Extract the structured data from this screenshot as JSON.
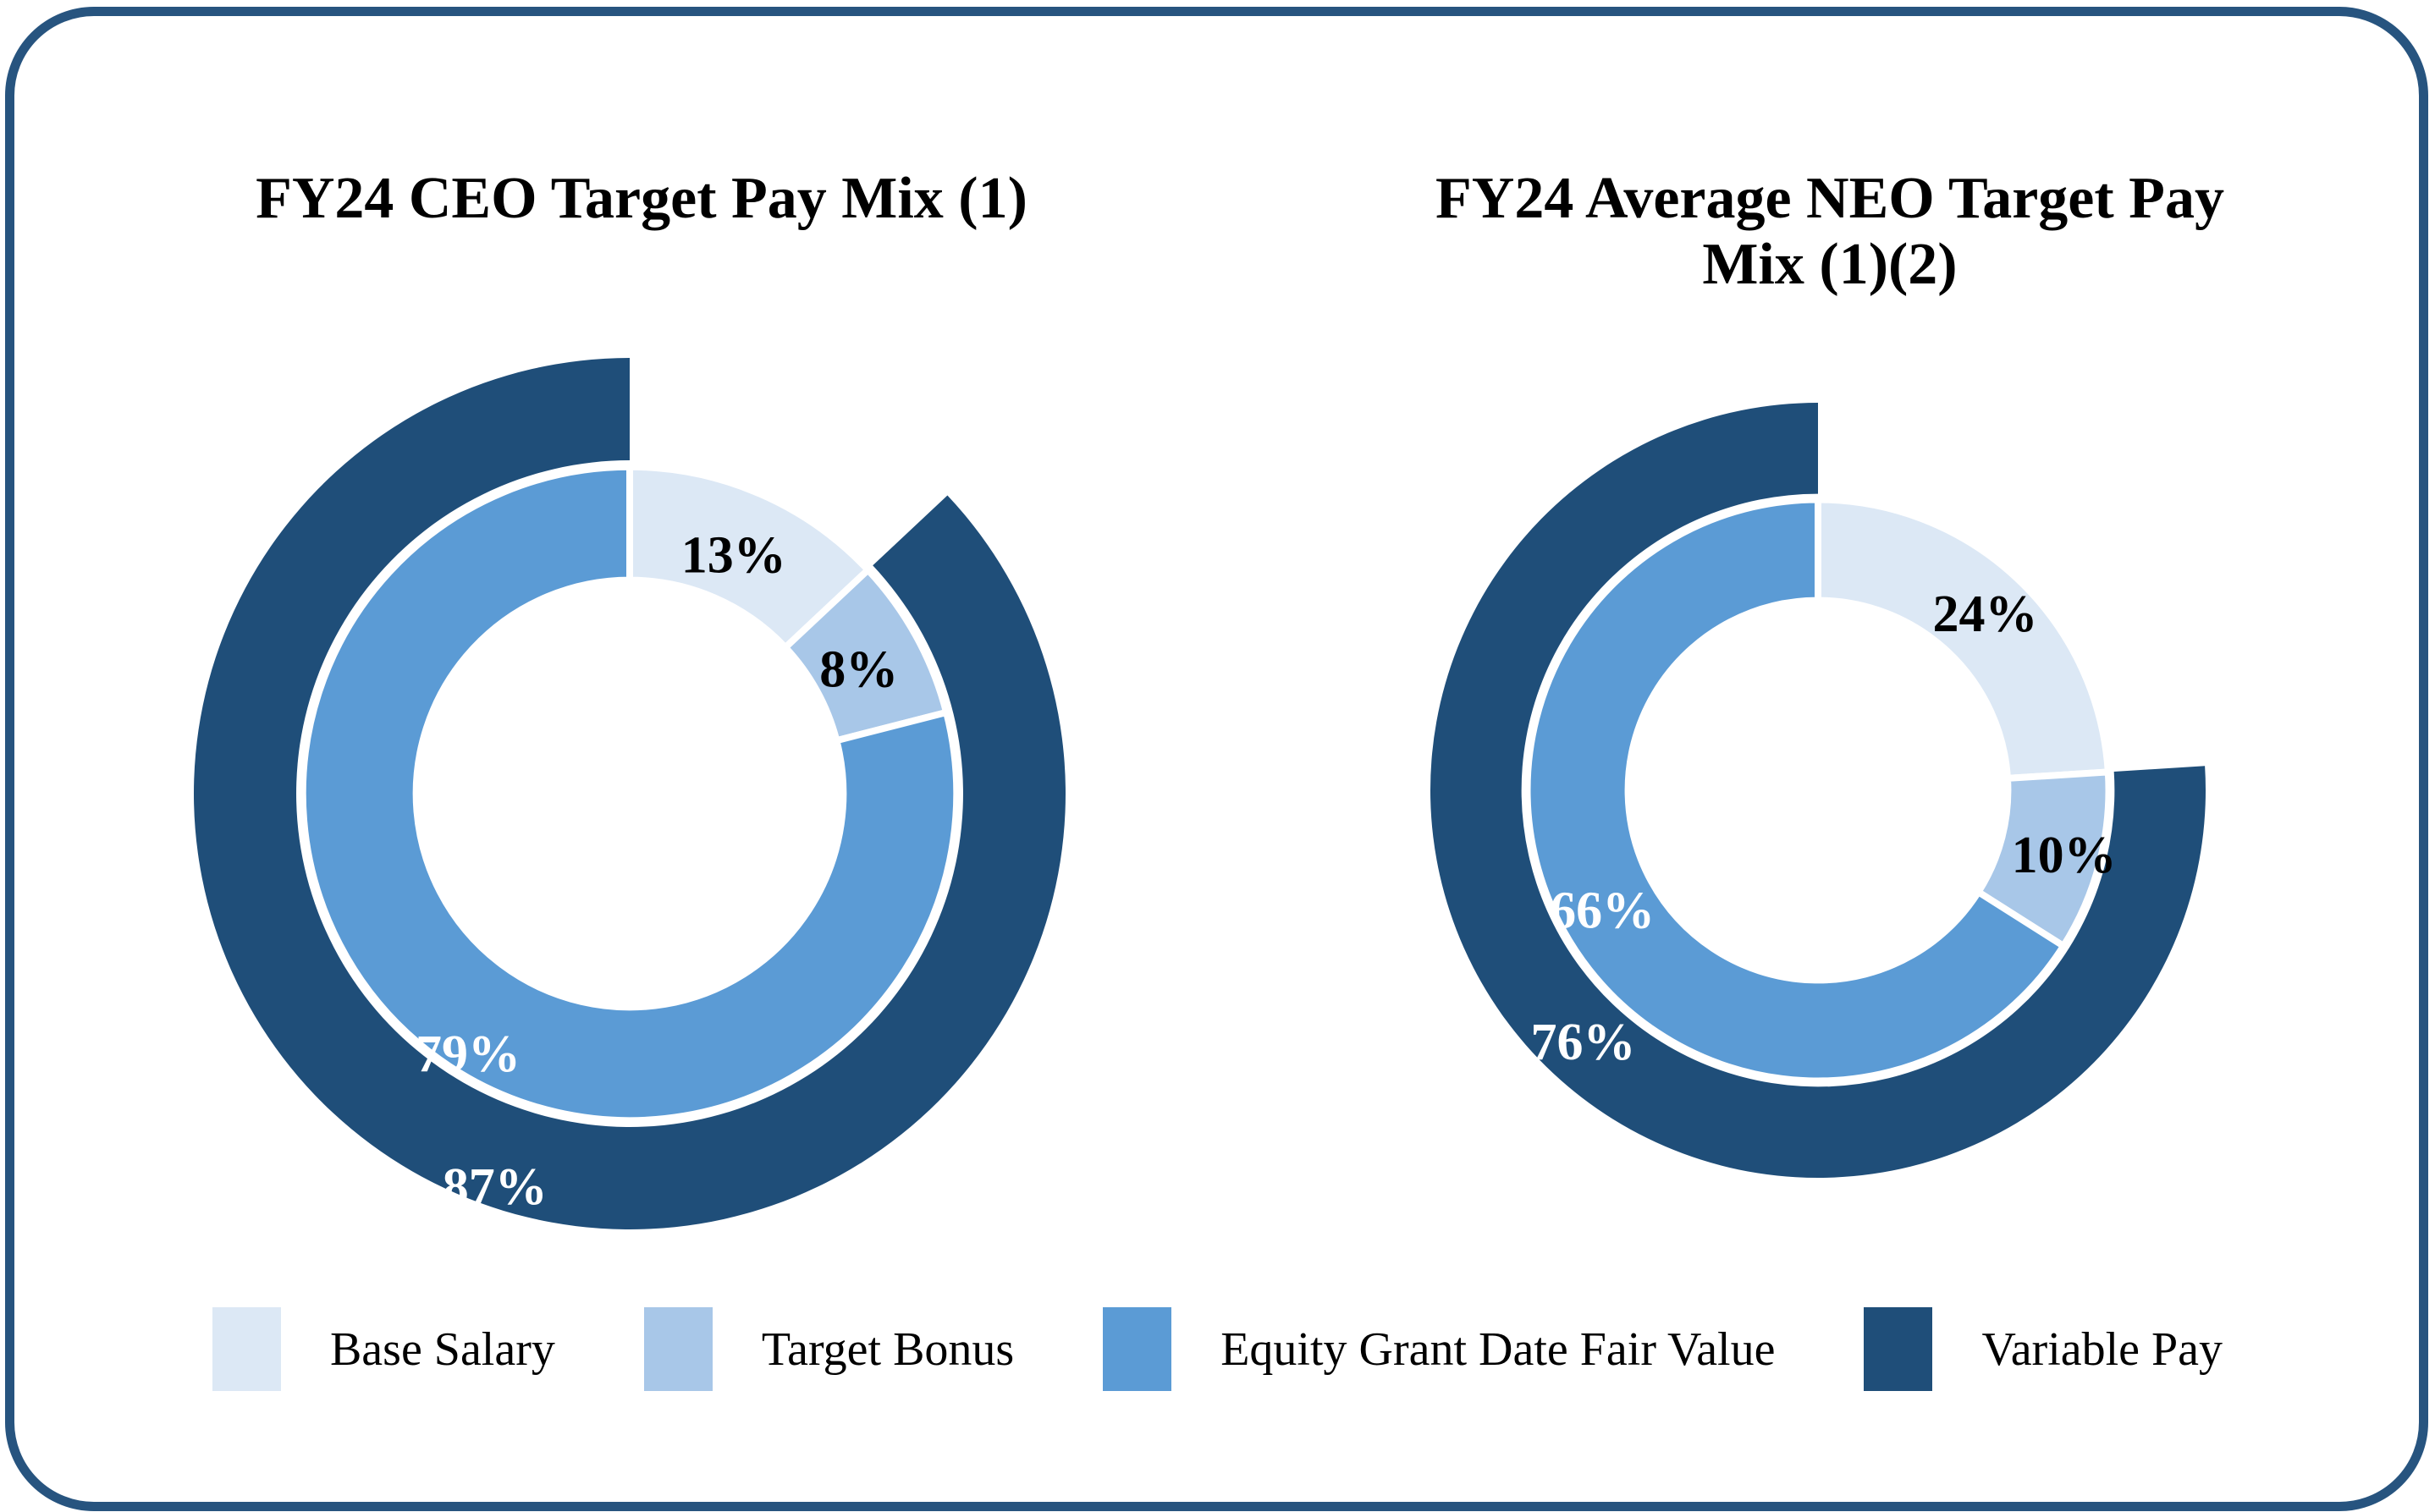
{
  "panel": {
    "background": "#ffffff",
    "border_color": "#27547f"
  },
  "chart_data": [
    {
      "type": "donut",
      "title": "FY24 CEO Target Pay Mix (1)",
      "title_lines": [
        "FY24 CEO Target Pay Mix (1)"
      ],
      "series": [
        {
          "name": "Base Salary",
          "value": 13,
          "label": "13%",
          "color": "#dce8f5",
          "label_color": "#000000"
        },
        {
          "name": "Target Bonus",
          "value": 8,
          "label": "8%",
          "color": "#a8c7e8",
          "label_color": "#000000"
        },
        {
          "name": "Equity Grant Date Fair Value",
          "value": 79,
          "label": "79%",
          "color": "#5b9bd5",
          "label_color": "#ffffff"
        }
      ],
      "outer_ring": {
        "name": "Variable Pay",
        "value": 87,
        "label": "87%",
        "color": "#1f4e79",
        "label_color": "#ffffff"
      },
      "legend_position": "bottom",
      "start_angle_deg": 0,
      "direction": "clockwise"
    },
    {
      "type": "donut",
      "title": "FY24 Average NEO Target Pay Mix (1)(2)",
      "title_lines": [
        "FY24 Average NEO Target Pay",
        "Mix (1)(2)"
      ],
      "series": [
        {
          "name": "Base Salary",
          "value": 24,
          "label": "24%",
          "color": "#dce8f5",
          "label_color": "#000000"
        },
        {
          "name": "Target Bonus",
          "value": 10,
          "label": "10%",
          "color": "#a8c7e8",
          "label_color": "#000000"
        },
        {
          "name": "Equity Grant Date Fair Value",
          "value": 66,
          "label": "66%",
          "color": "#5b9bd5",
          "label_color": "#ffffff"
        }
      ],
      "outer_ring": {
        "name": "Variable Pay",
        "value": 76,
        "label": "76%",
        "color": "#1f4e79",
        "label_color": "#ffffff"
      },
      "legend_position": "bottom",
      "start_angle_deg": 0,
      "direction": "clockwise"
    }
  ],
  "legend": {
    "items": [
      {
        "label": "Base Salary",
        "color": "#dce8f5"
      },
      {
        "label": "Target Bonus",
        "color": "#a8c7e8"
      },
      {
        "label": "Equity Grant Date Fair Value",
        "color": "#5b9bd5"
      },
      {
        "label": "Variable Pay",
        "color": "#1f4e79"
      }
    ]
  }
}
